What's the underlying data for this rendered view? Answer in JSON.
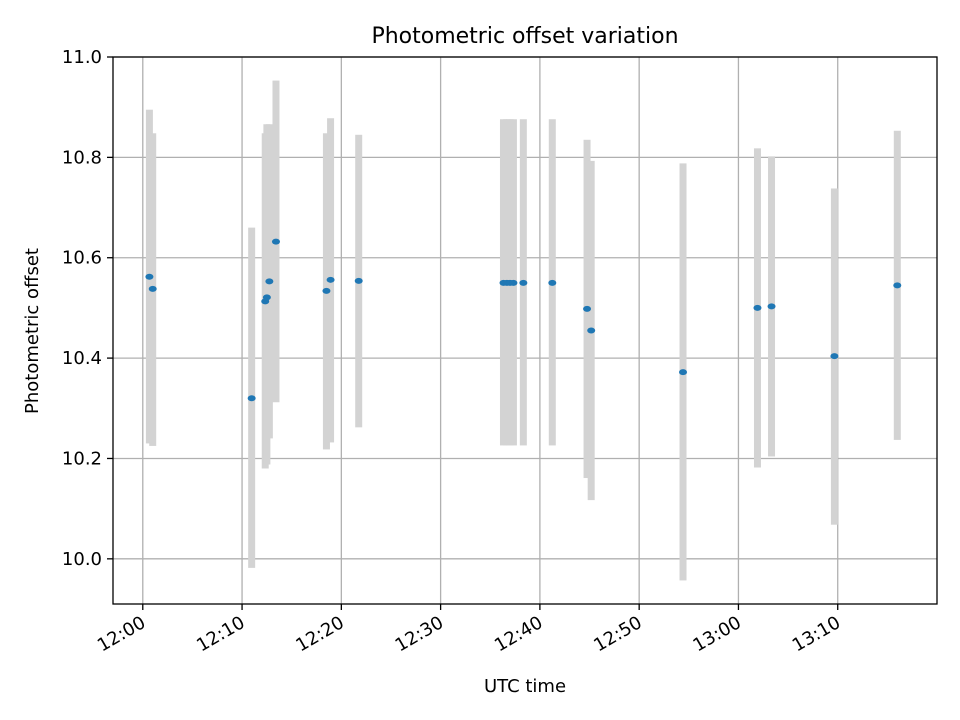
{
  "chart_data": {
    "type": "scatter",
    "title": "Photometric offset variation",
    "xlabel": "UTC time",
    "ylabel": "Photometric offset",
    "x_ticks": [
      "12:00",
      "12:10",
      "12:20",
      "12:30",
      "12:40",
      "12:50",
      "13:00",
      "13:10"
    ],
    "y_ticks": [
      "10.0",
      "10.2",
      "10.4",
      "10.6",
      "10.8",
      "11.0"
    ],
    "xlim": [
      "11:57:00",
      "13:20:00"
    ],
    "ylim": [
      9.91,
      11.0
    ],
    "grid": true,
    "colors": {
      "point": "#1f77b4",
      "errorbar": "#d3d3d3",
      "grid": "#b0b0b0"
    },
    "points": [
      {
        "x": "12:00:40",
        "y": 10.562,
        "ylow": 10.23,
        "yhigh": 10.895
      },
      {
        "x": "12:01:00",
        "y": 10.538,
        "ylow": 10.225,
        "yhigh": 10.848
      },
      {
        "x": "12:10:58",
        "y": 10.32,
        "ylow": 9.982,
        "yhigh": 10.66
      },
      {
        "x": "12:12:20",
        "y": 10.513,
        "ylow": 10.18,
        "yhigh": 10.848
      },
      {
        "x": "12:12:30",
        "y": 10.521,
        "ylow": 10.188,
        "yhigh": 10.866
      },
      {
        "x": "12:12:45",
        "y": 10.553,
        "ylow": 10.24,
        "yhigh": 10.866
      },
      {
        "x": "12:13:25",
        "y": 10.632,
        "ylow": 10.312,
        "yhigh": 10.953
      },
      {
        "x": "12:18:30",
        "y": 10.534,
        "ylow": 10.218,
        "yhigh": 10.848
      },
      {
        "x": "12:18:55",
        "y": 10.556,
        "ylow": 10.232,
        "yhigh": 10.878
      },
      {
        "x": "12:21:45",
        "y": 10.554,
        "ylow": 10.262,
        "yhigh": 10.845
      },
      {
        "x": "12:36:20",
        "y": 10.55,
        "ylow": 10.226,
        "yhigh": 10.876
      },
      {
        "x": "12:36:40",
        "y": 10.55,
        "ylow": 10.226,
        "yhigh": 10.876
      },
      {
        "x": "12:37:00",
        "y": 10.55,
        "ylow": 10.226,
        "yhigh": 10.876
      },
      {
        "x": "12:37:20",
        "y": 10.55,
        "ylow": 10.226,
        "yhigh": 10.876
      },
      {
        "x": "12:38:20",
        "y": 10.55,
        "ylow": 10.226,
        "yhigh": 10.876
      },
      {
        "x": "12:41:15",
        "y": 10.55,
        "ylow": 10.226,
        "yhigh": 10.876
      },
      {
        "x": "12:44:45",
        "y": 10.498,
        "ylow": 10.161,
        "yhigh": 10.835
      },
      {
        "x": "12:45:10",
        "y": 10.455,
        "ylow": 10.117,
        "yhigh": 10.793
      },
      {
        "x": "12:54:25",
        "y": 10.372,
        "ylow": 9.957,
        "yhigh": 10.788
      },
      {
        "x": "13:01:55",
        "y": 10.5,
        "ylow": 10.182,
        "yhigh": 10.818
      },
      {
        "x": "13:03:20",
        "y": 10.503,
        "ylow": 10.204,
        "yhigh": 10.802
      },
      {
        "x": "13:09:40",
        "y": 10.404,
        "ylow": 10.068,
        "yhigh": 10.738
      },
      {
        "x": "13:16:00",
        "y": 10.545,
        "ylow": 10.237,
        "yhigh": 10.853
      }
    ]
  }
}
